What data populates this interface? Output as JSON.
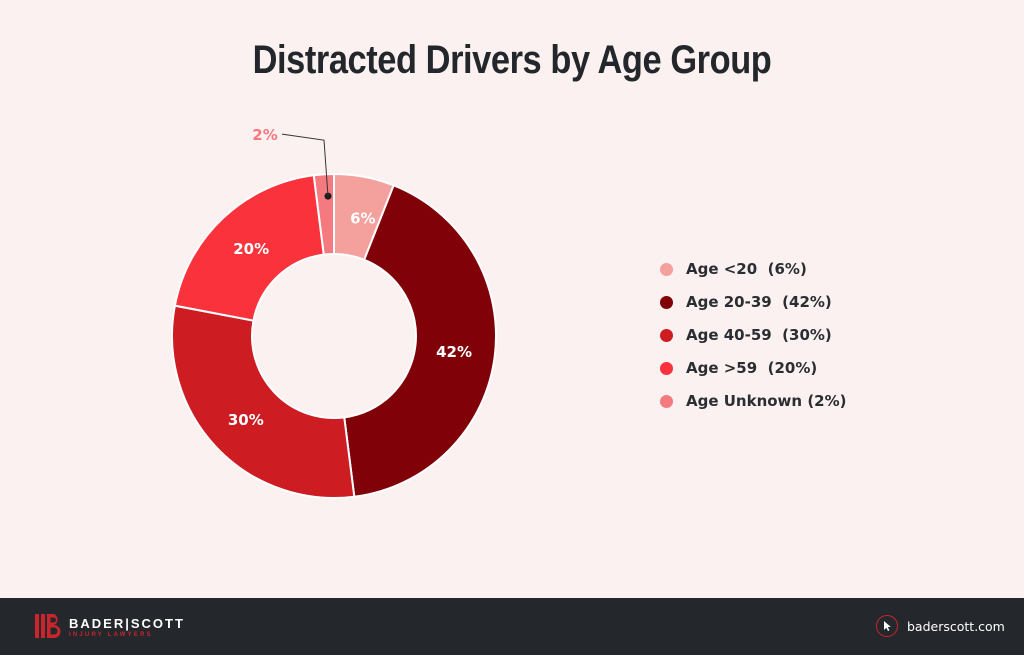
{
  "chart_data": {
    "type": "pie",
    "title": "Distracted Drivers by Age Group",
    "donut": true,
    "legend_position": "right",
    "slices": [
      {
        "label": "Age <20",
        "value": 6,
        "data_label": "6%",
        "legend": "Age <20  (6%)",
        "color": "#f4a09d"
      },
      {
        "label": "Age 20-39",
        "value": 42,
        "data_label": "42%",
        "legend": "Age 20-39  (42%)",
        "color": "#800208"
      },
      {
        "label": "Age 40-59",
        "value": 30,
        "data_label": "30%",
        "legend": "Age 40-59  (30%)",
        "color": "#cd1c22"
      },
      {
        "label": "Age >59",
        "value": 20,
        "data_label": "20%",
        "legend": "Age >59  (20%)",
        "color": "#fa323b"
      },
      {
        "label": "Age Unknown",
        "value": 2,
        "data_label": "2%",
        "legend": "Age Unknown (2%)",
        "color": "#f57a80"
      }
    ],
    "callout_slice": "Age Unknown",
    "label_color": "#ffffff",
    "callout_label_color": "#f57a80"
  },
  "footer": {
    "brand_name": "BADER|SCOTT",
    "brand_tagline": "INJURY LAWYERS",
    "website": "baderscott.com",
    "background": "#24272b",
    "accent": "#c8262c"
  },
  "background": "#fbf1f0"
}
